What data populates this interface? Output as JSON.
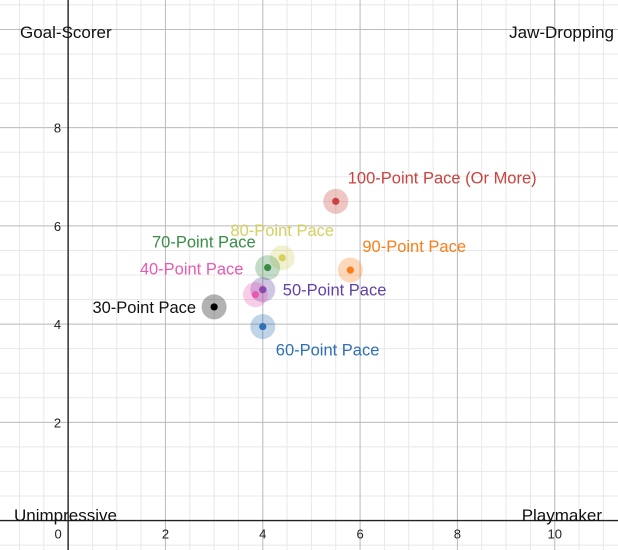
{
  "chart_data": {
    "type": "scatter",
    "xlim": [
      -1.4,
      11.3
    ],
    "ylim": [
      -0.6,
      10.6
    ],
    "x_ticks": [
      0,
      2,
      4,
      6,
      8,
      10
    ],
    "y_ticks": [
      2,
      4,
      6,
      8
    ],
    "grid": true,
    "corner_labels": {
      "top_left": "Goal-Scorer",
      "top_right": "Jaw-Dropping",
      "bottom_left": "Unimpressive",
      "bottom_right": "Playmaker"
    },
    "points": [
      {
        "label": "100-Point Pace (Or More)",
        "x": 5.5,
        "y": 6.5,
        "color": "#c74440",
        "anchor": "right-above"
      },
      {
        "label": "90-Point Pace",
        "x": 5.8,
        "y": 5.1,
        "color": "#fa7e19",
        "anchor": "right-above"
      },
      {
        "label": "80-Point Pace",
        "x": 4.4,
        "y": 5.35,
        "color": "#d5d060",
        "anchor": "above"
      },
      {
        "label": "70-Point Pace",
        "x": 4.1,
        "y": 5.15,
        "color": "#388c46",
        "anchor": "left-above"
      },
      {
        "label": "60-Point Pace",
        "x": 4.0,
        "y": 3.95,
        "color": "#2d70b3",
        "anchor": "right-below"
      },
      {
        "label": "50-Point Pace",
        "x": 4.0,
        "y": 4.7,
        "color": "#6042a6",
        "anchor": "right"
      },
      {
        "label": "40-Point Pace",
        "x": 3.85,
        "y": 4.6,
        "color": "#e85ab1",
        "anchor": "left-above"
      },
      {
        "label": "30-Point Pace",
        "x": 3.0,
        "y": 4.35,
        "color": "#000000",
        "anchor": "left"
      }
    ]
  }
}
